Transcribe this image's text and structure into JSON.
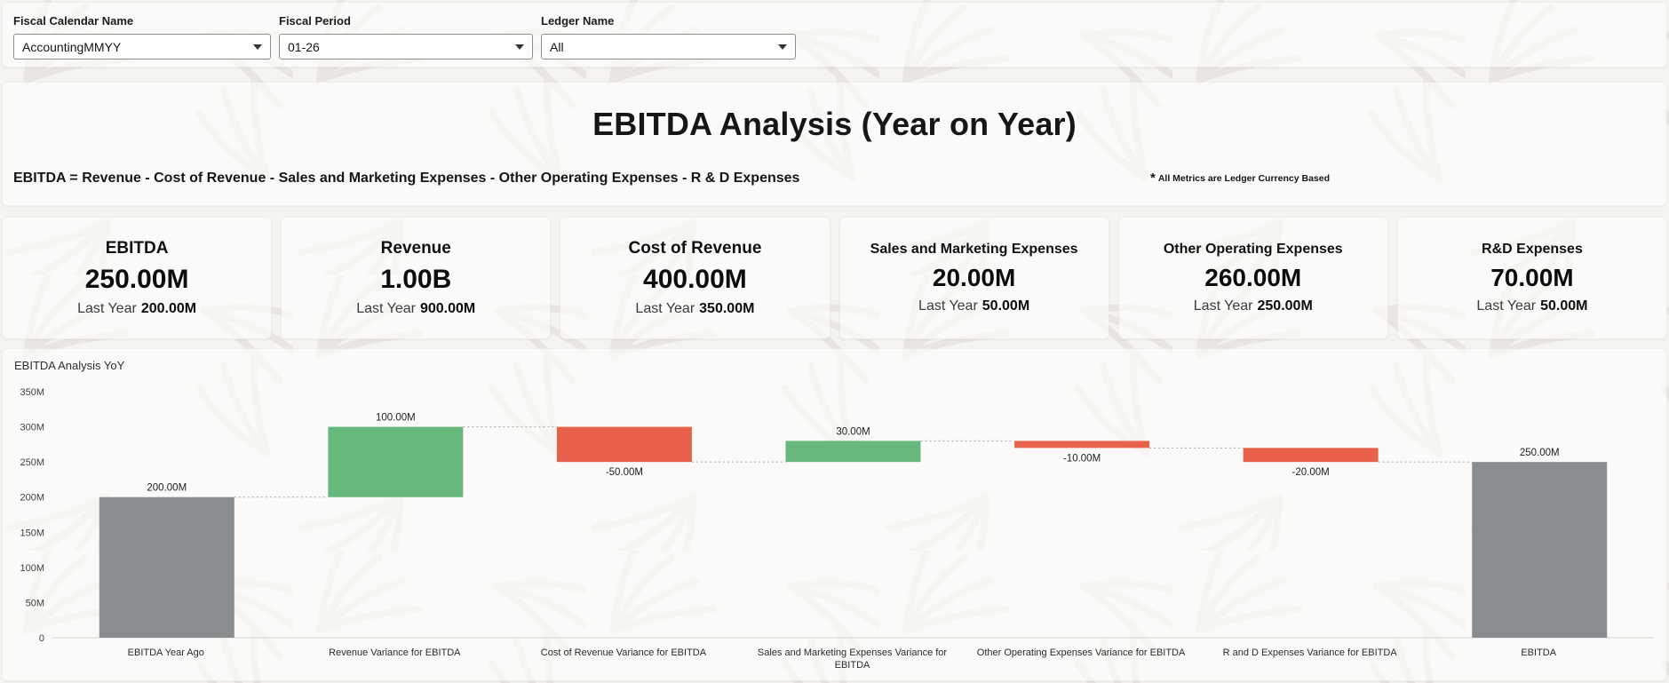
{
  "filters": [
    {
      "label": "Fiscal Calendar Name",
      "value": "AccountingMMYY"
    },
    {
      "label": "Fiscal Period",
      "value": "01-26"
    },
    {
      "label": "Ledger Name",
      "value": "All"
    }
  ],
  "header": {
    "title": "EBITDA Analysis (Year on Year)",
    "formula": "EBITDA = Revenue - Cost of Revenue - Sales and Marketing Expenses - Other Operating Expenses - R & D Expenses",
    "note_asterisk": "*",
    "note": "All Metrics are Ledger Currency Based"
  },
  "kpis": [
    {
      "title": "EBITDA",
      "value": "250.00M",
      "last_year_label": "Last Year",
      "last_year_value": "200.00M"
    },
    {
      "title": "Revenue",
      "value": "1.00B",
      "last_year_label": "Last Year",
      "last_year_value": "900.00M"
    },
    {
      "title": "Cost of Revenue",
      "value": "400.00M",
      "last_year_label": "Last Year",
      "last_year_value": "350.00M"
    },
    {
      "title": "Sales and Marketing Expenses",
      "value": "20.00M",
      "last_year_label": "Last Year",
      "last_year_value": "50.00M"
    },
    {
      "title": "Other Operating Expenses",
      "value": "260.00M",
      "last_year_label": "Last Year",
      "last_year_value": "250.00M"
    },
    {
      "title": "R&D Expenses",
      "value": "70.00M",
      "last_year_label": "Last Year",
      "last_year_value": "50.00M"
    }
  ],
  "chart_data": {
    "type": "waterfall",
    "title": "EBITDA Analysis YoY",
    "categories": [
      "EBITDA Year Ago",
      "Revenue Variance for EBITDA",
      "Cost of Revenue Variance for EBITDA",
      "Sales and Marketing Expenses Variance for EBITDA",
      "Other Operating Expenses Variance for EBITDA",
      "R and D Expenses Variance for EBITDA",
      "EBITDA"
    ],
    "values": [
      200,
      100,
      -50,
      30,
      -10,
      -20,
      250
    ],
    "bar_kinds": [
      "total",
      "increase",
      "decrease",
      "increase",
      "decrease",
      "decrease",
      "total"
    ],
    "labels": [
      "200.00M",
      "100.00M",
      "-50.00M",
      "30.00M",
      "-10.00M",
      "-20.00M",
      "250.00M"
    ],
    "unit": "M",
    "ylim": [
      0,
      350
    ],
    "ytick_values": [
      0,
      50,
      100,
      150,
      200,
      250,
      300,
      350
    ],
    "ytick_labels": [
      "0",
      "50M",
      "100M",
      "150M",
      "200M",
      "250M",
      "300M",
      "350M"
    ],
    "grid": false,
    "legend": "none",
    "colors": {
      "total": "#8a8d90",
      "increase": "#67b87d",
      "decrease": "#e8624b"
    }
  }
}
